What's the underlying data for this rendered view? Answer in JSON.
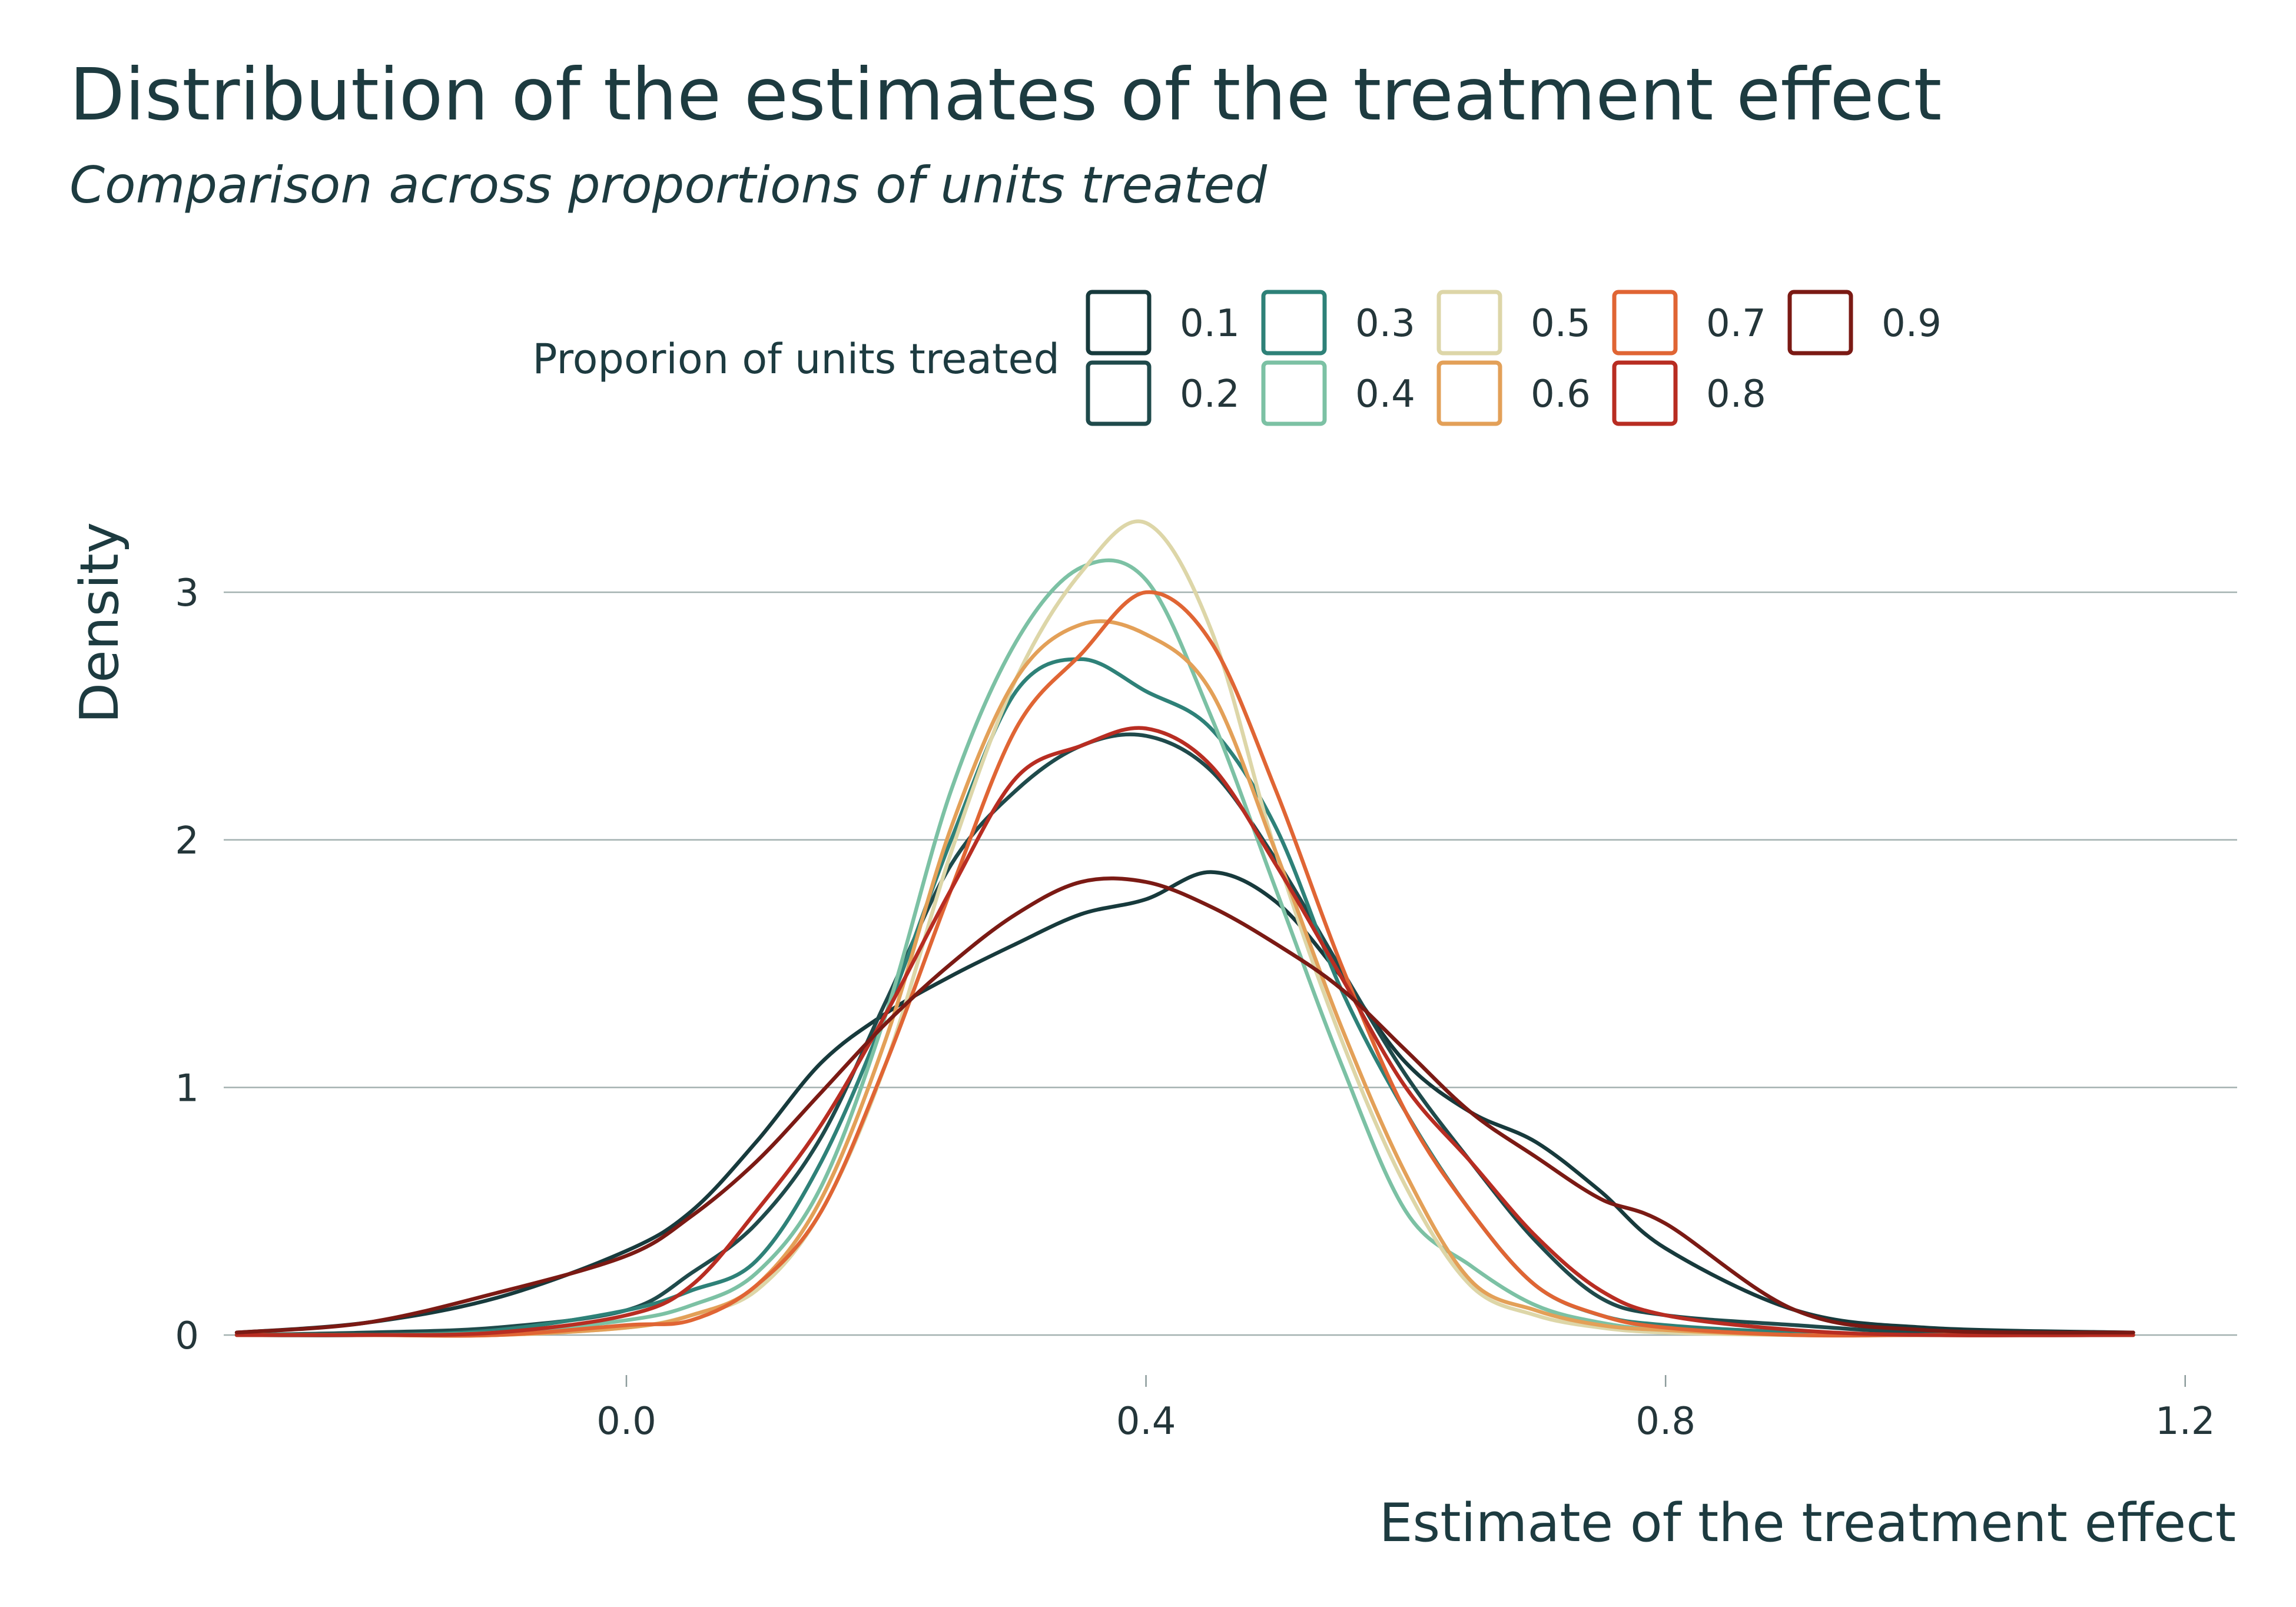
{
  "chart_data": {
    "type": "line",
    "title": "Distribution of the estimates of the treatment effect",
    "subtitle": "Comparison across proportions of units treated",
    "xlabel": "Estimate of the treatment effect",
    "ylabel": "Density",
    "xlim": [
      -0.31,
      1.24
    ],
    "ylim": [
      0,
      3.3
    ],
    "x_ticks": [
      0.0,
      0.4,
      0.8,
      1.2
    ],
    "x_tick_labels": [
      "0.0",
      "0.4",
      "0.8",
      "1.2"
    ],
    "y_ticks": [
      0,
      1,
      2,
      3
    ],
    "y_tick_labels": [
      "0",
      "1",
      "2",
      "3"
    ],
    "grid": "horizontal",
    "legend": {
      "title": "Proporion of units treated",
      "position": "top"
    },
    "x": [
      -0.3,
      -0.2,
      -0.1,
      0.0,
      0.05,
      0.1,
      0.15,
      0.2,
      0.25,
      0.3,
      0.35,
      0.4,
      0.45,
      0.5,
      0.55,
      0.6,
      0.65,
      0.7,
      0.75,
      0.8,
      0.9,
      1.0,
      1.16
    ],
    "series": [
      {
        "name": "0.1",
        "color": "#173a3c",
        "values": [
          0.01,
          0.05,
          0.15,
          0.34,
          0.5,
          0.78,
          1.1,
          1.3,
          1.45,
          1.58,
          1.7,
          1.76,
          1.87,
          1.75,
          1.45,
          1.1,
          0.9,
          0.78,
          0.58,
          0.35,
          0.1,
          0.03,
          0.01
        ]
      },
      {
        "name": "0.2",
        "color": "#1f4a4b",
        "values": [
          0.0,
          0.01,
          0.03,
          0.1,
          0.25,
          0.45,
          0.8,
          1.35,
          1.9,
          2.2,
          2.38,
          2.42,
          2.28,
          1.92,
          1.48,
          1.05,
          0.7,
          0.38,
          0.15,
          0.08,
          0.04,
          0.01,
          0.0
        ]
      },
      {
        "name": "0.3",
        "color": "#2e8178",
        "values": [
          0.0,
          0.0,
          0.02,
          0.1,
          0.18,
          0.3,
          0.7,
          1.3,
          2.0,
          2.6,
          2.73,
          2.6,
          2.45,
          2.05,
          1.4,
          0.9,
          0.5,
          0.2,
          0.08,
          0.04,
          0.01,
          0.0,
          0.0
        ]
      },
      {
        "name": "0.4",
        "color": "#7cc1a4",
        "values": [
          0.0,
          0.0,
          0.01,
          0.06,
          0.12,
          0.25,
          0.6,
          1.3,
          2.2,
          2.8,
          3.1,
          3.05,
          2.5,
          1.8,
          1.1,
          0.5,
          0.28,
          0.12,
          0.05,
          0.02,
          0.0,
          0.0,
          0.0
        ]
      },
      {
        "name": "0.5",
        "color": "#ddd6a8",
        "values": [
          0.0,
          0.0,
          0.0,
          0.03,
          0.08,
          0.18,
          0.5,
          1.1,
          1.95,
          2.65,
          3.08,
          3.28,
          2.85,
          1.95,
          1.2,
          0.6,
          0.2,
          0.08,
          0.03,
          0.01,
          0.0,
          0.0,
          0.0
        ]
      },
      {
        "name": "0.6",
        "color": "#e3a058",
        "values": [
          0.0,
          0.0,
          0.0,
          0.03,
          0.08,
          0.2,
          0.55,
          1.2,
          2.05,
          2.65,
          2.87,
          2.83,
          2.6,
          1.95,
          1.25,
          0.65,
          0.22,
          0.1,
          0.04,
          0.02,
          0.0,
          0.0,
          0.0
        ]
      },
      {
        "name": "0.7",
        "color": "#e06534",
        "values": [
          0.0,
          0.0,
          0.0,
          0.04,
          0.06,
          0.2,
          0.5,
          1.1,
          1.8,
          2.45,
          2.75,
          3.0,
          2.8,
          2.2,
          1.5,
          0.9,
          0.5,
          0.2,
          0.08,
          0.03,
          0.0,
          0.0,
          0.0
        ]
      },
      {
        "name": "0.8",
        "color": "#b82d22",
        "values": [
          0.0,
          0.0,
          0.01,
          0.08,
          0.2,
          0.5,
          0.85,
          1.3,
          1.8,
          2.25,
          2.38,
          2.45,
          2.3,
          1.9,
          1.45,
          1.0,
          0.7,
          0.4,
          0.18,
          0.08,
          0.02,
          0.0,
          0.0
        ]
      },
      {
        "name": "0.9",
        "color": "#7b1a14",
        "values": [
          0.01,
          0.05,
          0.17,
          0.32,
          0.48,
          0.7,
          0.98,
          1.26,
          1.5,
          1.7,
          1.83,
          1.83,
          1.73,
          1.58,
          1.4,
          1.15,
          0.9,
          0.72,
          0.55,
          0.45,
          0.1,
          0.02,
          0.01
        ]
      }
    ]
  }
}
